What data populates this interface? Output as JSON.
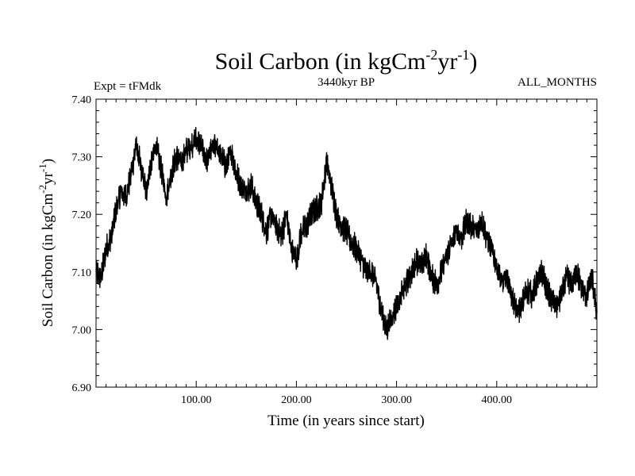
{
  "chart_data": {
    "type": "line",
    "title": {
      "main": "Soil Carbon (in kgCm",
      "sup1": "-2",
      "mid": "yr",
      "sup2": "-1",
      "close": ")"
    },
    "subtitle_left": "Expt = tFMdk",
    "subtitle_center": "3440kyr BP",
    "subtitle_right": "ALL_MONTHS",
    "xlabel": "Time (in years since start)",
    "ylabel": {
      "main": "Soil Carbon (in kgCm",
      "sup1": "-2",
      "mid": "yr",
      "sup2": "-1",
      "close": ")"
    },
    "xlim": [
      0,
      500
    ],
    "ylim": [
      6.9,
      7.4
    ],
    "x_ticks": [
      100,
      200,
      300,
      400
    ],
    "x_tick_labels": [
      "100.00",
      "200.00",
      "300.00",
      "400.00"
    ],
    "y_ticks": [
      6.9,
      7.0,
      7.1,
      7.2,
      7.3,
      7.4
    ],
    "y_tick_labels": [
      "6.90",
      "7.00",
      "7.10",
      "7.20",
      "7.30",
      "7.40"
    ],
    "grid": false,
    "series": [
      {
        "name": "Soil Carbon",
        "color": "#000000",
        "x": [
          0,
          5,
          10,
          15,
          20,
          25,
          30,
          35,
          40,
          45,
          50,
          55,
          60,
          65,
          70,
          75,
          80,
          85,
          90,
          95,
          100,
          105,
          110,
          115,
          120,
          125,
          130,
          135,
          140,
          145,
          150,
          155,
          160,
          165,
          170,
          175,
          180,
          185,
          190,
          195,
          200,
          205,
          210,
          215,
          220,
          225,
          230,
          235,
          240,
          245,
          250,
          255,
          260,
          265,
          270,
          275,
          280,
          285,
          290,
          295,
          300,
          305,
          310,
          315,
          320,
          325,
          330,
          335,
          340,
          345,
          350,
          355,
          360,
          365,
          370,
          375,
          380,
          385,
          390,
          395,
          400,
          405,
          410,
          415,
          420,
          425,
          430,
          435,
          440,
          445,
          450,
          455,
          460,
          465,
          470,
          475,
          480,
          485,
          490,
          495,
          500
        ],
        "y": [
          7.1,
          7.09,
          7.14,
          7.16,
          7.21,
          7.24,
          7.23,
          7.27,
          7.32,
          7.28,
          7.24,
          7.29,
          7.32,
          7.28,
          7.23,
          7.27,
          7.3,
          7.29,
          7.31,
          7.32,
          7.33,
          7.32,
          7.29,
          7.31,
          7.32,
          7.3,
          7.28,
          7.31,
          7.27,
          7.25,
          7.24,
          7.25,
          7.22,
          7.2,
          7.17,
          7.2,
          7.18,
          7.16,
          7.2,
          7.14,
          7.12,
          7.17,
          7.18,
          7.2,
          7.21,
          7.22,
          7.29,
          7.25,
          7.2,
          7.18,
          7.17,
          7.15,
          7.14,
          7.12,
          7.1,
          7.1,
          7.08,
          7.03,
          7.0,
          7.02,
          7.04,
          7.06,
          7.08,
          7.1,
          7.12,
          7.11,
          7.13,
          7.09,
          7.08,
          7.1,
          7.13,
          7.15,
          7.17,
          7.16,
          7.19,
          7.18,
          7.17,
          7.19,
          7.16,
          7.14,
          7.11,
          7.08,
          7.09,
          7.06,
          7.03,
          7.04,
          7.07,
          7.06,
          7.08,
          7.1,
          7.07,
          7.05,
          7.04,
          7.06,
          7.09,
          7.08,
          7.1,
          7.07,
          7.06,
          7.09,
          7.03
        ],
        "variability_band": 0.018
      }
    ]
  }
}
